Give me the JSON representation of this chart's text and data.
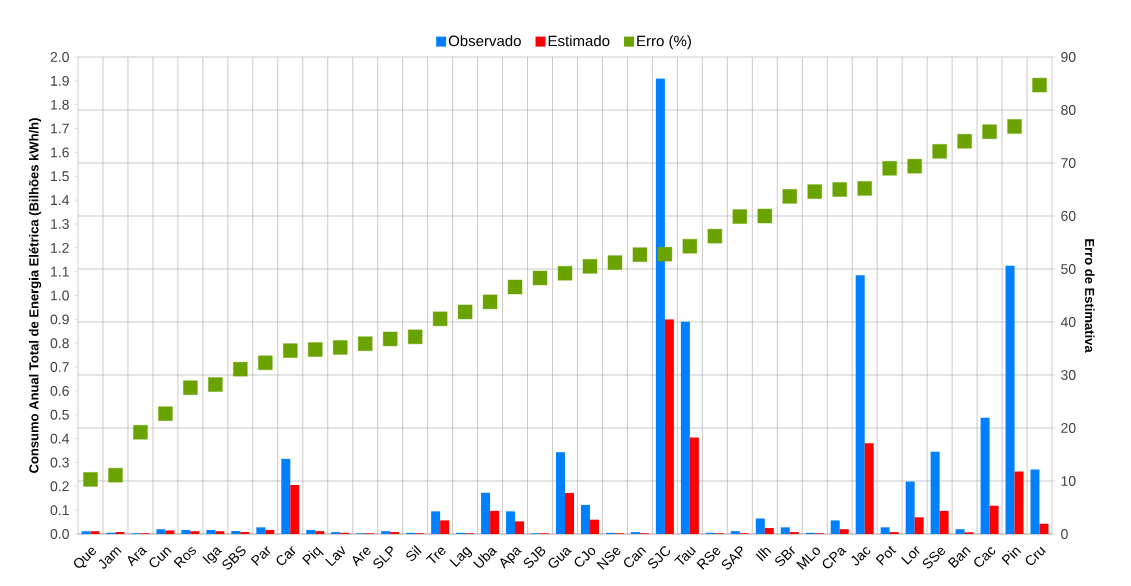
{
  "chart_data": {
    "type": "bar",
    "categories": [
      "Que",
      "Jam",
      "Ara",
      "Cun",
      "Ros",
      "Iga",
      "SBS",
      "Par",
      "Car",
      "Piq",
      "Lav",
      "Are",
      "SLP",
      "Sil",
      "Tre",
      "Lag",
      "Uba",
      "Apa",
      "SJB",
      "Gua",
      "CJo",
      "NSe",
      "Can",
      "SJC",
      "Tau",
      "RSe",
      "SAP",
      "Ilh",
      "SBr",
      "MLo",
      "CPa",
      "Jac",
      "Pot",
      "Lor",
      "SSe",
      "Ban",
      "Cac",
      "Pin",
      "Cru"
    ],
    "series": [
      {
        "name": "Observado",
        "color": "#0080ff",
        "values": [
          0.012,
          0.005,
          0.003,
          0.02,
          0.017,
          0.017,
          0.013,
          0.028,
          0.315,
          0.017,
          0.008,
          0.003,
          0.012,
          0.005,
          0.095,
          0.005,
          0.173,
          0.095,
          0.003,
          0.343,
          0.122,
          0.005,
          0.008,
          1.91,
          0.89,
          0.005,
          0.012,
          0.065,
          0.028,
          0.005,
          0.057,
          1.085,
          0.028,
          0.22,
          0.345,
          0.02,
          0.487,
          1.125,
          0.27
        ]
      },
      {
        "name": "Estimado",
        "color": "#ff0000",
        "values": [
          0.012,
          0.008,
          0.003,
          0.015,
          0.012,
          0.012,
          0.008,
          0.017,
          0.205,
          0.012,
          0.005,
          0.003,
          0.008,
          0.003,
          0.057,
          0.003,
          0.097,
          0.053,
          0.003,
          0.172,
          0.06,
          0.003,
          0.003,
          0.9,
          0.405,
          0.003,
          0.003,
          0.025,
          0.008,
          0.003,
          0.02,
          0.38,
          0.008,
          0.07,
          0.097,
          0.007,
          0.118,
          0.262,
          0.043
        ]
      },
      {
        "name": "Erro (%)",
        "type": "scatter",
        "axis": "y2",
        "marker": "square",
        "color": "#6aa300",
        "values": [
          10.3,
          11.1,
          19.2,
          22.7,
          27.6,
          28.2,
          31.1,
          32.3,
          34.6,
          34.8,
          35.2,
          35.9,
          36.8,
          37.2,
          40.6,
          41.9,
          43.8,
          46.6,
          48.3,
          49.2,
          50.5,
          51.2,
          52.7,
          52.8,
          54.3,
          56.2,
          59.9,
          60.0,
          63.7,
          64.6,
          65.0,
          65.2,
          69.0,
          69.4,
          72.2,
          74.1,
          75.9,
          76.9,
          84.7
        ]
      }
    ],
    "ylabel": "Consumo Anual Total de Energia Elétrica (Bilhões kWh/h)",
    "y2label": "Erro de Estimativa",
    "ylim": [
      0,
      2.0
    ],
    "yticks": [
      {
        "value": 0,
        "label": "0.0"
      },
      {
        "value": 0.1,
        "label": "0.1"
      },
      {
        "value": 0.2,
        "label": "0.2"
      },
      {
        "value": 0.3,
        "label": "0.3"
      },
      {
        "value": 0.4,
        "label": "0.4"
      },
      {
        "value": 0.5,
        "label": "0.5"
      },
      {
        "value": 0.6,
        "label": "0.6"
      },
      {
        "value": 0.7,
        "label": "0.7"
      },
      {
        "value": 0.8,
        "label": "0.8"
      },
      {
        "value": 0.9,
        "label": "0.9"
      },
      {
        "value": 1.0,
        "label": "1.0"
      },
      {
        "value": 1.1,
        "label": "1.1"
      },
      {
        "value": 1.2,
        "label": "1.2"
      },
      {
        "value": 1.3,
        "label": "1.3"
      },
      {
        "value": 1.4,
        "label": "1.4"
      },
      {
        "value": 1.5,
        "label": "1.5"
      },
      {
        "value": 1.6,
        "label": "1.6"
      },
      {
        "value": 1.7,
        "label": "1.7"
      },
      {
        "value": 1.8,
        "label": "1.8"
      },
      {
        "value": 1.9,
        "label": "1.9"
      },
      {
        "value": 2.0,
        "label": "2.0"
      }
    ],
    "y2lim": [
      0,
      90
    ],
    "y2ticks": [
      0,
      10,
      20,
      30,
      40,
      50,
      60,
      70,
      80,
      90
    ],
    "grid": true,
    "legend": "top"
  }
}
